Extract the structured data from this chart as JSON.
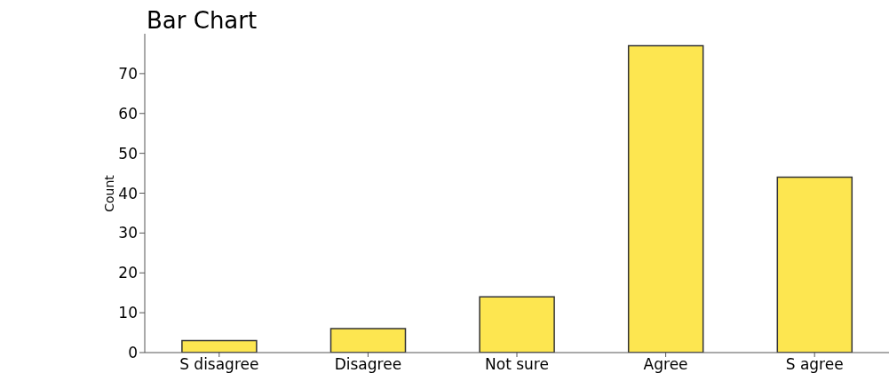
{
  "chart_data": {
    "type": "bar",
    "title": "Bar Chart",
    "ylabel": "Count",
    "categories": [
      "S disagree",
      "Disagree",
      "Not sure",
      "Agree",
      "S agree"
    ],
    "values": [
      3,
      6,
      14,
      77,
      44
    ],
    "color": "#fde650",
    "ylim": [
      0,
      80
    ],
    "yticks": [
      0,
      10,
      20,
      30,
      40,
      50,
      60,
      70
    ],
    "grid": false,
    "legend": false
  }
}
